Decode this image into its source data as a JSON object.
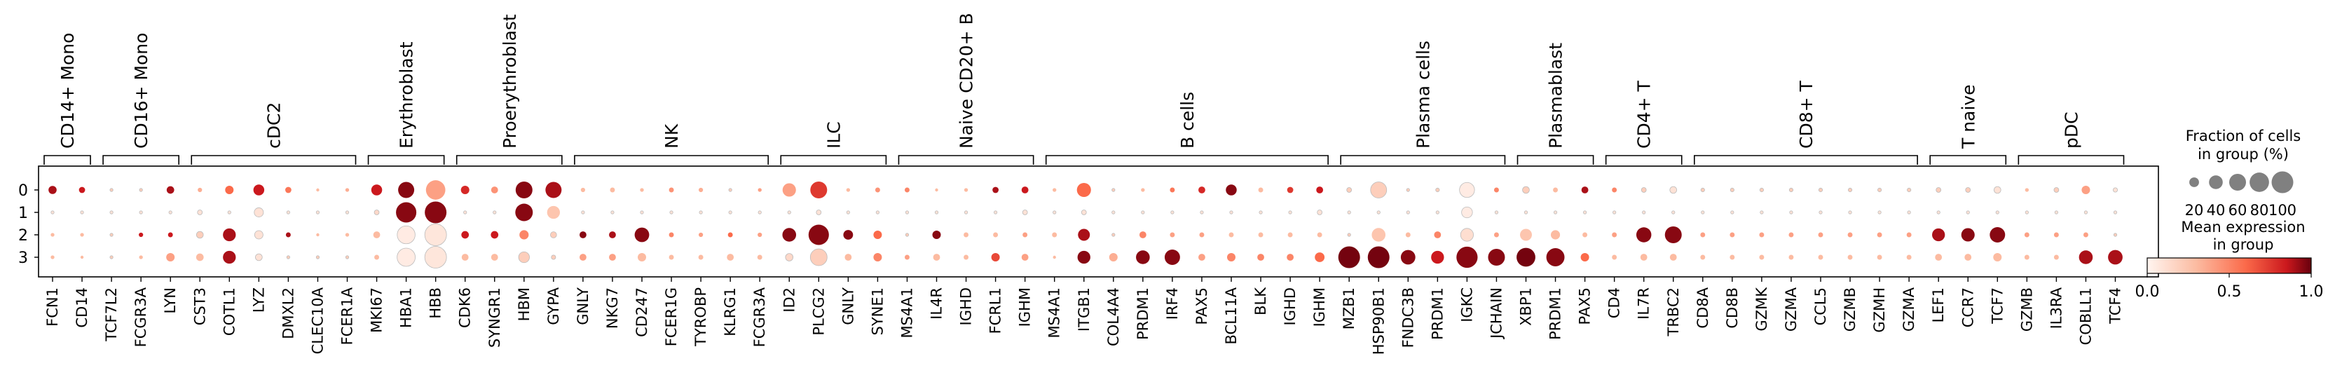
{
  "chart_data": {
    "type": "dotplot",
    "rows": [
      "0",
      "1",
      "2",
      "3"
    ],
    "genes": [
      "FCN1",
      "CD14",
      "TCF7L2",
      "FCGR3A",
      "LYN",
      "CST3",
      "COTL1",
      "LYZ",
      "DMXL2",
      "CLEC10A",
      "FCER1A",
      "MKI67",
      "HBA1",
      "HBB",
      "CDK6",
      "SYNGR1",
      "HBM",
      "GYPA",
      "GNLY",
      "NKG7",
      "CD247",
      "FCER1G",
      "TYROBP",
      "KLRG1",
      "FCGR3A",
      "ID2",
      "PLCG2",
      "GNLY",
      "SYNE1",
      "MS4A1",
      "IL4R",
      "IGHD",
      "FCRL1",
      "IGHM",
      "MS4A1",
      "ITGB1",
      "COL4A4",
      "PRDM1",
      "IRF4",
      "PAX5",
      "BCL11A",
      "BLK",
      "IGHD",
      "IGHM",
      "MZB1",
      "HSP90B1",
      "FNDC3B",
      "PRDM1",
      "IGKC",
      "JCHAIN",
      "XBP1",
      "PRDM1",
      "PAX5",
      "CD4",
      "IL7R",
      "TRBC2",
      "CD8A",
      "CD8B",
      "GZMK",
      "GZMA",
      "CCL5",
      "GZMB",
      "GZMH",
      "GZMA",
      "LEF1",
      "CCR7",
      "TCF7",
      "GZMB",
      "IL3RA",
      "COBLL1",
      "TCF4"
    ],
    "groups": [
      {
        "name": "CD14+ Mono",
        "start": 0,
        "end": 1
      },
      {
        "name": "CD16+ Mono",
        "start": 2,
        "end": 4
      },
      {
        "name": "cDC2",
        "start": 5,
        "end": 10
      },
      {
        "name": "Erythroblast",
        "start": 11,
        "end": 13
      },
      {
        "name": "Proerythroblast",
        "start": 14,
        "end": 17
      },
      {
        "name": "NK",
        "start": 18,
        "end": 24
      },
      {
        "name": "ILC",
        "start": 25,
        "end": 28
      },
      {
        "name": "Naive CD20+ B",
        "start": 29,
        "end": 33
      },
      {
        "name": "B cells",
        "start": 34,
        "end": 43
      },
      {
        "name": "Plasma cells",
        "start": 44,
        "end": 49
      },
      {
        "name": "Plasmablast",
        "start": 50,
        "end": 52
      },
      {
        "name": "CD4+ T",
        "start": 53,
        "end": 55
      },
      {
        "name": "CD8+ T",
        "start": 56,
        "end": 63
      },
      {
        "name": "T naive",
        "start": 64,
        "end": 66
      },
      {
        "name": "pDC",
        "start": 67,
        "end": 70
      }
    ],
    "fraction": [
      [
        14,
        8,
        2,
        2,
        12,
        4,
        15,
        25,
        8,
        2,
        3,
        25,
        55,
        80,
        15,
        10,
        60,
        55,
        4,
        5,
        3,
        5,
        4,
        2,
        3,
        38,
        60,
        3,
        5,
        5,
        2,
        3,
        8,
        10,
        3,
        42,
        2,
        3,
        5,
        10,
        25,
        5,
        8,
        10,
        5,
        55,
        2,
        3,
        48,
        5,
        10,
        5,
        10,
        5,
        5,
        10,
        3,
        3,
        3,
        3,
        3,
        3,
        3,
        3,
        5,
        5,
        10,
        3,
        5,
        15,
        4
      ],
      [
        2,
        2,
        2,
        2,
        2,
        5,
        2,
        18,
        2,
        2,
        2,
        5,
        88,
        100,
        2,
        2,
        65,
        35,
        2,
        2,
        2,
        2,
        2,
        2,
        2,
        2,
        5,
        2,
        2,
        2,
        2,
        2,
        2,
        5,
        2,
        5,
        2,
        2,
        2,
        2,
        2,
        2,
        2,
        5,
        2,
        2,
        2,
        2,
        25,
        2,
        2,
        2,
        2,
        2,
        2,
        2,
        2,
        2,
        2,
        2,
        2,
        2,
        2,
        2,
        2,
        2,
        2,
        2,
        2,
        2,
        2
      ],
      [
        3,
        3,
        2,
        4,
        5,
        10,
        35,
        15,
        5,
        2,
        3,
        10,
        68,
        100,
        12,
        12,
        18,
        8,
        10,
        10,
        45,
        5,
        4,
        5,
        4,
        40,
        88,
        20,
        15,
        2,
        15,
        5,
        5,
        5,
        5,
        30,
        2,
        10,
        5,
        5,
        5,
        5,
        5,
        5,
        2,
        40,
        5,
        10,
        35,
        5,
        30,
        18,
        5,
        5,
        48,
        60,
        5,
        5,
        5,
        5,
        5,
        5,
        5,
        5,
        35,
        38,
        50,
        5,
        5,
        5,
        2
      ],
      [
        3,
        2,
        2,
        3,
        15,
        12,
        35,
        10,
        2,
        2,
        2,
        5,
        70,
        100,
        10,
        10,
        25,
        4,
        10,
        10,
        15,
        5,
        5,
        10,
        5,
        12,
        60,
        10,
        15,
        5,
        10,
        5,
        15,
        10,
        2,
        35,
        15,
        40,
        50,
        10,
        15,
        10,
        10,
        20,
        100,
        100,
        45,
        35,
        95,
        60,
        75,
        70,
        15,
        5,
        10,
        10,
        5,
        5,
        5,
        5,
        5,
        5,
        5,
        5,
        10,
        10,
        15,
        5,
        5,
        40,
        45
      ]
    ],
    "expression": [
      [
        0.9,
        0.85,
        0.2,
        0.2,
        0.9,
        0.35,
        0.6,
        0.85,
        0.55,
        0.3,
        0.35,
        0.85,
        0.95,
        0.4,
        0.8,
        0.45,
        0.95,
        0.9,
        0.3,
        0.3,
        0.3,
        0.45,
        0.35,
        0.2,
        0.4,
        0.4,
        0.75,
        0.3,
        0.45,
        0.5,
        0.3,
        0.3,
        0.9,
        0.85,
        0.3,
        0.6,
        0.2,
        0.3,
        0.55,
        0.8,
        0.95,
        0.3,
        0.75,
        0.85,
        0.2,
        0.2,
        0.2,
        0.2,
        0.05,
        0.5,
        0.2,
        0.3,
        0.9,
        0.5,
        0.2,
        0.1,
        0.2,
        0.2,
        0.2,
        0.2,
        0.2,
        0.2,
        0.2,
        0.2,
        0.2,
        0.2,
        0.1,
        0.3,
        0.2,
        0.4,
        0.1
      ],
      [
        0.1,
        0.1,
        0.1,
        0.1,
        0.1,
        0.1,
        0.1,
        0.1,
        0.1,
        0.1,
        0.1,
        0.15,
        0.95,
        0.95,
        0.1,
        0.1,
        0.95,
        0.25,
        0.1,
        0.1,
        0.1,
        0.1,
        0.1,
        0.1,
        0.1,
        0.1,
        0.1,
        0.1,
        0.1,
        0.1,
        0.1,
        0.1,
        0.1,
        0.1,
        0.1,
        0.1,
        0.1,
        0.1,
        0.1,
        0.1,
        0.1,
        0.1,
        0.1,
        0.1,
        0.1,
        0.1,
        0.1,
        0.1,
        0.05,
        0.1,
        0.1,
        0.1,
        0.1,
        0.1,
        0.1,
        0.1,
        0.1,
        0.1,
        0.1,
        0.1,
        0.1,
        0.1,
        0.1,
        0.1,
        0.1,
        0.1,
        0.1,
        0.1,
        0.1,
        0.1,
        0.1
      ],
      [
        0.3,
        0.3,
        0.2,
        0.85,
        0.85,
        0.2,
        0.9,
        0.1,
        0.9,
        0.3,
        0.3,
        0.3,
        0.05,
        0.08,
        0.85,
        0.85,
        0.5,
        0.2,
        0.95,
        0.9,
        0.95,
        0.5,
        0.4,
        0.6,
        0.4,
        0.95,
        0.95,
        0.95,
        0.6,
        0.2,
        0.95,
        0.3,
        0.3,
        0.4,
        0.3,
        0.9,
        0.2,
        0.5,
        0.4,
        0.4,
        0.3,
        0.3,
        0.3,
        0.3,
        0.2,
        0.25,
        0.3,
        0.5,
        0.12,
        0.4,
        0.25,
        0.3,
        0.3,
        0.4,
        0.95,
        0.95,
        0.4,
        0.4,
        0.4,
        0.4,
        0.4,
        0.4,
        0.4,
        0.4,
        0.9,
        0.95,
        0.95,
        0.4,
        0.4,
        0.4,
        0.2
      ],
      [
        0.3,
        0.3,
        0.2,
        0.3,
        0.4,
        0.3,
        0.9,
        0.1,
        0.2,
        0.2,
        0.2,
        0.3,
        0.05,
        0.08,
        0.3,
        0.3,
        0.2,
        0.2,
        0.4,
        0.4,
        0.3,
        0.3,
        0.3,
        0.3,
        0.3,
        0.15,
        0.2,
        0.3,
        0.5,
        0.4,
        0.3,
        0.3,
        0.7,
        0.4,
        0.3,
        0.95,
        0.35,
        0.95,
        0.95,
        0.4,
        0.5,
        0.5,
        0.5,
        0.6,
        0.98,
        0.98,
        0.95,
        0.85,
        0.95,
        0.95,
        0.98,
        0.95,
        0.6,
        0.3,
        0.3,
        0.3,
        0.3,
        0.3,
        0.3,
        0.3,
        0.3,
        0.3,
        0.3,
        0.3,
        0.3,
        0.3,
        0.3,
        0.3,
        0.3,
        0.9,
        0.9
      ]
    ],
    "size_legend": {
      "title": "Fraction of cells\nin group (%)",
      "values": [
        20,
        40,
        60,
        80,
        100
      ],
      "labels": [
        "20",
        "40",
        "60",
        "80",
        "100"
      ]
    },
    "color_legend": {
      "title": "Mean expression\nin group",
      "min": 0.0,
      "max": 1.0,
      "tick_values": [
        0.0,
        0.5,
        1.0
      ],
      "tick_labels": [
        "0.0",
        "0.5",
        "1.0"
      ]
    },
    "colormap": {
      "low": "#fff5f0",
      "mid1": "#fcbba1",
      "mid2": "#fb6a4a",
      "mid3": "#cb181d",
      "high": "#67000d"
    }
  }
}
